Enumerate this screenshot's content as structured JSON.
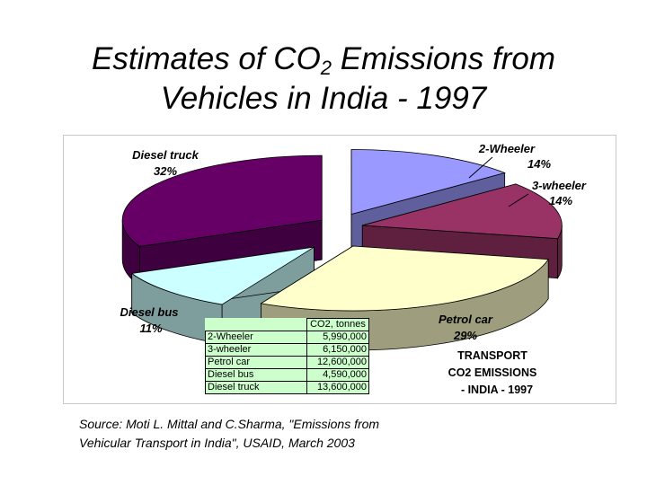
{
  "slide": {
    "title_part1": "Estimates of  CO",
    "title_sub": "2",
    "title_part2": " Emissions from",
    "title_line2": "Vehicles in India - 1997",
    "source_line1": "Source: Moti L. Mittal and C.Sharma, \"Emissions from",
    "source_line2": "Vehicular Transport in India\", USAID, March 2003"
  },
  "chart_data": {
    "type": "pie",
    "style": "3d-exploded",
    "categories": [
      "2-Wheeler",
      "3-wheeler",
      "Petrol car",
      "Diesel bus",
      "Diesel truck"
    ],
    "values": [
      5990000,
      6150000,
      12600000,
      4590000,
      13600000
    ],
    "percent_labels": [
      "14%",
      "14%",
      "29%",
      "11%",
      "32%"
    ],
    "series": [
      {
        "name": "CO2, tonnes",
        "values": [
          5990000,
          6150000,
          12600000,
          4590000,
          13600000
        ]
      }
    ],
    "colors": {
      "2-Wheeler": "#9999ff",
      "3-wheeler": "#993366",
      "Petrol car": "#ffffcc",
      "Diesel bus": "#ccffff",
      "Diesel truck": "#660066"
    },
    "annotation": [
      "TRANSPORT",
      "CO2 EMISSIONS",
      "- INDIA - 1997"
    ]
  },
  "table": {
    "header": "CO2, tonnes",
    "rows": [
      {
        "name": "2-Wheeler",
        "value": "5,990,000"
      },
      {
        "name": "3-wheeler",
        "value": "6,150,000"
      },
      {
        "name": "Petrol car",
        "value": "12,600,000"
      },
      {
        "name": "Diesel bus",
        "value": "4,590,000"
      },
      {
        "name": "Diesel truck",
        "value": "13,600,000"
      }
    ],
    "background": "#ccffcc"
  }
}
